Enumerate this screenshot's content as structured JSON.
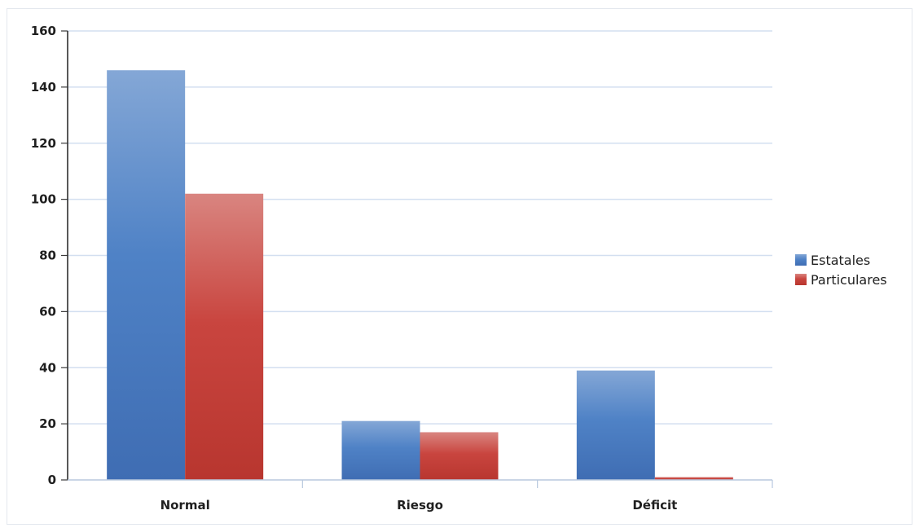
{
  "chart_data": {
    "type": "bar",
    "categories": [
      "Normal",
      "Riesgo",
      "Déficit"
    ],
    "series": [
      {
        "name": "Estatales",
        "values": [
          146,
          21,
          39
        ],
        "color": "#4a7ec5"
      },
      {
        "name": "Particulares",
        "values": [
          102,
          17,
          1
        ],
        "color": "#c8443f"
      }
    ],
    "yticks": [
      "0",
      "20",
      "40",
      "60",
      "80",
      "100",
      "120",
      "140",
      "160"
    ],
    "ylim": [
      0,
      160
    ],
    "grid": true,
    "legend_position": "right"
  }
}
